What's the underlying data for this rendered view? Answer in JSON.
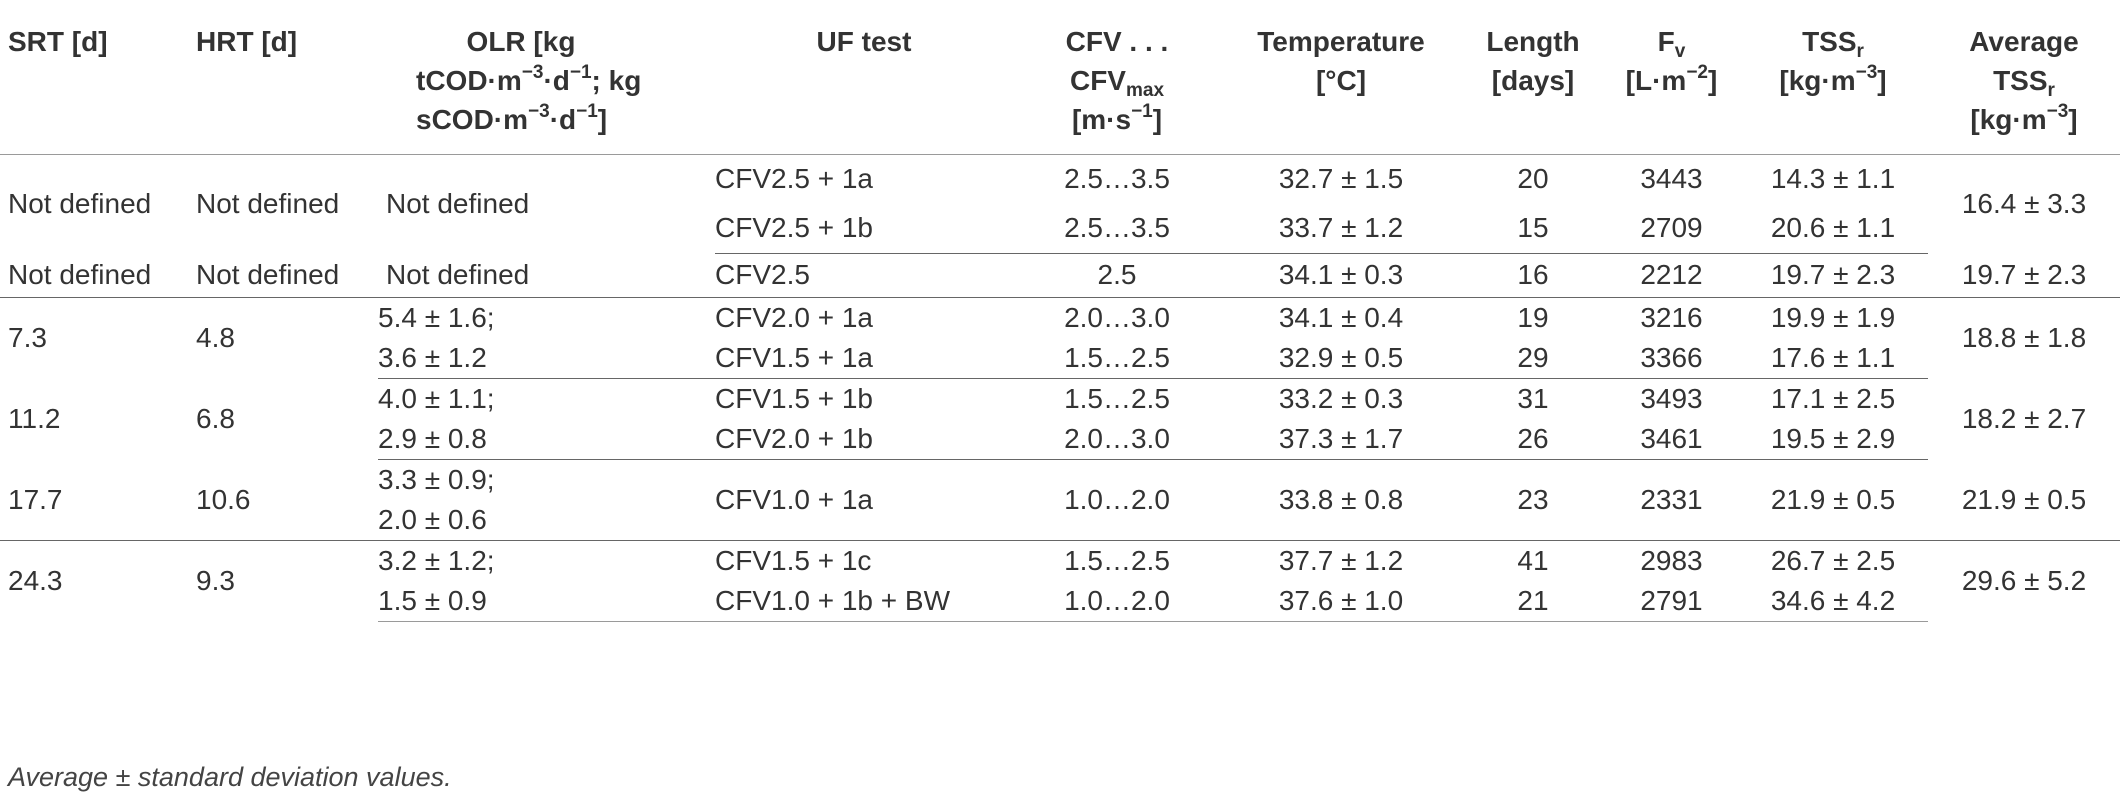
{
  "header": {
    "srt": "SRT [d]",
    "hrt": "HRT [d]",
    "olr": {
      "l1": "OLR [kg",
      "l2a": "tCOD·m",
      "l2a_sup": "−3",
      "l2b": "·d",
      "l2b_sup": "−1",
      "l2c": "; kg",
      "l3a": "sCOD·m",
      "l3a_sup": "−3",
      "l3b": "·d",
      "l3b_sup": "−1",
      "l3c": "]"
    },
    "uf": "UF test",
    "cfv": {
      "l1": "CFV . . .",
      "l2": "CFV",
      "l2_sub": "max",
      "l3a": "[m·s",
      "l3_sup": "−1",
      "l3b": "]"
    },
    "temp": {
      "l1": "Temperature",
      "l2": "[°C]"
    },
    "length": {
      "l1": "Length",
      "l2": "[days]"
    },
    "fv": {
      "l1": "F",
      "l1_sub": "v",
      "l2a": "[L·m",
      "l2_sup": "−2",
      "l2b": "]"
    },
    "tssr": {
      "l1": "TSS",
      "l1_sub": "r",
      "l2a": "[kg·m",
      "l2_sup": "−3",
      "l2b": "]"
    },
    "avg": {
      "l1": "Average",
      "l2": "TSS",
      "l2_sub": "r",
      "l3a": "[kg·m",
      "l3_sup": "−3",
      "l3b": "]"
    }
  },
  "groups": [
    {
      "srt": "Not defined",
      "hrt": "Not defined",
      "olr": [
        "Not defined"
      ],
      "rows": [
        {
          "uf": "CFV2.5 + 1a",
          "cfv": "2.5…3.5",
          "temp": "32.7 ± 1.5",
          "length": "20",
          "fv": "3443",
          "tssr": "14.3 ± 1.1"
        },
        {
          "uf": "CFV2.5 + 1b",
          "cfv": "2.5…3.5",
          "temp": "33.7 ± 1.2",
          "length": "15",
          "fv": "2709",
          "tssr": "20.6 ± 1.1"
        }
      ],
      "avg": "16.4 ± 3.3"
    },
    {
      "srt": "Not defined",
      "hrt": "Not defined",
      "olr": [
        "Not defined"
      ],
      "rows": [
        {
          "uf": "CFV2.5",
          "cfv": "2.5",
          "temp": "34.1 ± 0.3",
          "length": "16",
          "fv": "2212",
          "tssr": "19.7 ± 2.3"
        }
      ],
      "avg": "19.7 ± 2.3"
    },
    {
      "srt": "7.3",
      "hrt": "4.8",
      "olr": [
        "5.4 ± 1.6;",
        "3.6 ± 1.2"
      ],
      "rows": [
        {
          "uf": "CFV2.0 + 1a",
          "cfv": "2.0…3.0",
          "temp": "34.1 ± 0.4",
          "length": "19",
          "fv": "3216",
          "tssr": "19.9 ± 1.9"
        },
        {
          "uf": "CFV1.5 + 1a",
          "cfv": "1.5…2.5",
          "temp": "32.9 ± 0.5",
          "length": "29",
          "fv": "3366",
          "tssr": "17.6 ± 1.1"
        }
      ],
      "avg": "18.8 ± 1.8"
    },
    {
      "srt": "11.2",
      "hrt": "6.8",
      "olr": [
        "4.0 ± 1.1;",
        "2.9 ± 0.8"
      ],
      "rows": [
        {
          "uf": "CFV1.5 + 1b",
          "cfv": "1.5…2.5",
          "temp": "33.2 ± 0.3",
          "length": "31",
          "fv": "3493",
          "tssr": "17.1 ± 2.5"
        },
        {
          "uf": "CFV2.0 + 1b",
          "cfv": "2.0…3.0",
          "temp": "37.3 ± 1.7",
          "length": "26",
          "fv": "3461",
          "tssr": "19.5 ± 2.9"
        }
      ],
      "avg": "18.2 ± 2.7"
    },
    {
      "srt": "17.7",
      "hrt": "10.6",
      "olr": [
        "3.3 ± 0.9;",
        "2.0 ± 0.6"
      ],
      "rows": [
        {
          "uf": "CFV1.0 + 1a",
          "cfv": "1.0…2.0",
          "temp": "33.8 ± 0.8",
          "length": "23",
          "fv": "2331",
          "tssr": "21.9 ± 0.5"
        }
      ],
      "avg": "21.9 ± 0.5"
    },
    {
      "srt": "24.3",
      "hrt": "9.3",
      "olr": [
        "3.2 ± 1.2;",
        "1.5 ± 0.9"
      ],
      "rows": [
        {
          "uf": "CFV1.5 + 1c",
          "cfv": "1.5…2.5",
          "temp": "37.7 ± 1.2",
          "length": "41",
          "fv": "2983",
          "tssr": "26.7 ± 2.5"
        },
        {
          "uf": "CFV1.0 + 1b + BW",
          "cfv": "1.0…2.0",
          "temp": "37.6 ± 1.0",
          "length": "21",
          "fv": "2791",
          "tssr": "34.6 ± 4.2"
        }
      ],
      "avg": "29.6 ± 5.2"
    }
  ],
  "footnote": "Average ± standard deviation values."
}
